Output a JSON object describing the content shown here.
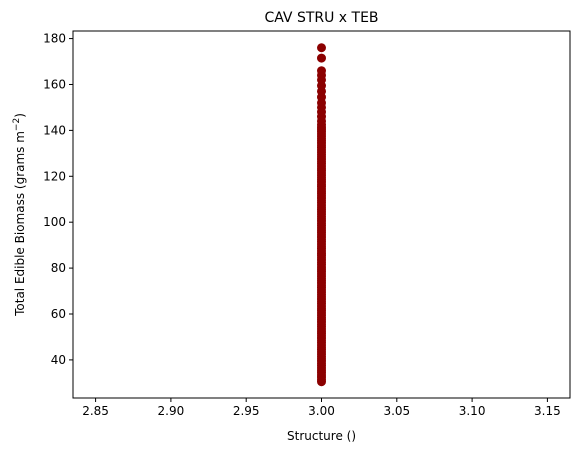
{
  "chart_data": {
    "type": "scatter",
    "title": "CAV STRU x TEB",
    "xlabel": "Structure ()",
    "ylabel_main": "Total Edible Biomass (grams m",
    "ylabel_sup": "−2",
    "ylabel_end": ")",
    "xlim": [
      2.835,
      3.165
    ],
    "ylim": [
      23.4,
      183.3
    ],
    "xticks": [
      2.85,
      2.9,
      2.95,
      3.0,
      3.05,
      3.1,
      3.15
    ],
    "xtick_labels": [
      "2.85",
      "2.90",
      "2.95",
      "3.00",
      "3.05",
      "3.10",
      "3.15"
    ],
    "yticks": [
      40,
      60,
      80,
      100,
      120,
      140,
      160,
      180
    ],
    "ytick_labels": [
      "40",
      "60",
      "80",
      "100",
      "120",
      "140",
      "160",
      "180"
    ],
    "marker_color": "#8b0000",
    "grid": false,
    "series": [
      {
        "x_value": 3.0,
        "y": [
          30.5,
          31.5,
          32.5,
          33.5,
          34.5,
          35.5,
          36.5,
          37.5,
          38.5,
          39.5,
          40.5,
          41.5,
          42.5,
          43.5,
          44.5,
          45.5,
          46.5,
          47.5,
          48.5,
          49.5,
          50.5,
          51.5,
          52.5,
          53.5,
          54.5,
          55.5,
          56.5,
          57.5,
          58.5,
          59.5,
          60.5,
          61.5,
          62.5,
          63.5,
          64.5,
          65.5,
          66.5,
          67.5,
          68.5,
          69.5,
          70.5,
          71.5,
          72.5,
          73.5,
          74.5,
          75.5,
          76.5,
          77.5,
          78.5,
          79.5,
          80.5,
          81.5,
          82.5,
          83.5,
          84.5,
          85.5,
          86.5,
          87.5,
          88.5,
          89.5,
          90.5,
          91.5,
          92.5,
          93.5,
          94.5,
          95.5,
          96.5,
          97.5,
          98.5,
          99.5,
          100.5,
          101.5,
          102.5,
          103.5,
          104.5,
          105.5,
          106.5,
          107.5,
          108.5,
          109.5,
          110.5,
          111.5,
          112.5,
          113.5,
          114.5,
          115.5,
          116.5,
          117.5,
          118.5,
          119.5,
          120.5,
          121.5,
          122.5,
          123.5,
          124.5,
          125.5,
          126.5,
          127.5,
          128.5,
          129.5,
          130.5,
          131.5,
          132.5,
          133.5,
          134.5,
          135.5,
          136.5,
          137.5,
          138.5,
          139.5,
          140.5,
          141.5,
          142.5,
          144.0,
          146.0,
          148.0,
          150.0,
          152.0,
          154.5,
          157.0,
          159.5,
          162.0,
          164.0,
          166.0,
          171.5,
          176.0
        ]
      }
    ]
  }
}
